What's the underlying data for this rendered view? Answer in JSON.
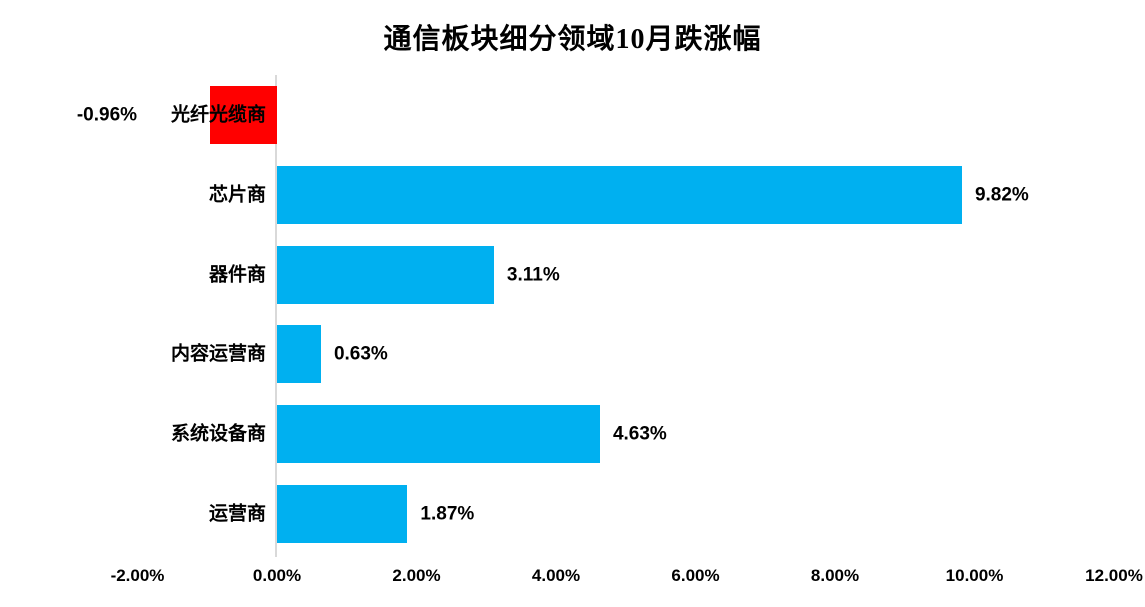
{
  "title": "通信板块细分领域10月跌涨幅",
  "colors": {
    "positive_bar": "#00B0F0",
    "negative_bar": "#FF0000",
    "axis_line": "#D9D9D9",
    "text": "#000000",
    "background": "#FFFFFF"
  },
  "chart_data": {
    "type": "bar",
    "orientation": "horizontal",
    "title": "通信板块细分领域10月跌涨幅",
    "categories": [
      "光纤光缆商",
      "芯片商",
      "器件商",
      "内容运营商",
      "系统设备商",
      "运营商"
    ],
    "values": [
      -0.96,
      9.82,
      3.11,
      0.63,
      4.63,
      1.87
    ],
    "data_labels": [
      "-0.96%",
      "9.82%",
      "3.11%",
      "0.63%",
      "4.63%",
      "1.87%"
    ],
    "x_tick_labels": [
      "-2.00%",
      "0.00%",
      "2.00%",
      "4.00%",
      "6.00%",
      "8.00%",
      "10.00%",
      "12.00%"
    ],
    "x_tick_values": [
      -2,
      0,
      2,
      4,
      6,
      8,
      10,
      12
    ],
    "xlim": [
      -2,
      12
    ],
    "unit": "%",
    "grid": false,
    "legend": false,
    "value_axis": "bottom",
    "category_axis": "left"
  }
}
